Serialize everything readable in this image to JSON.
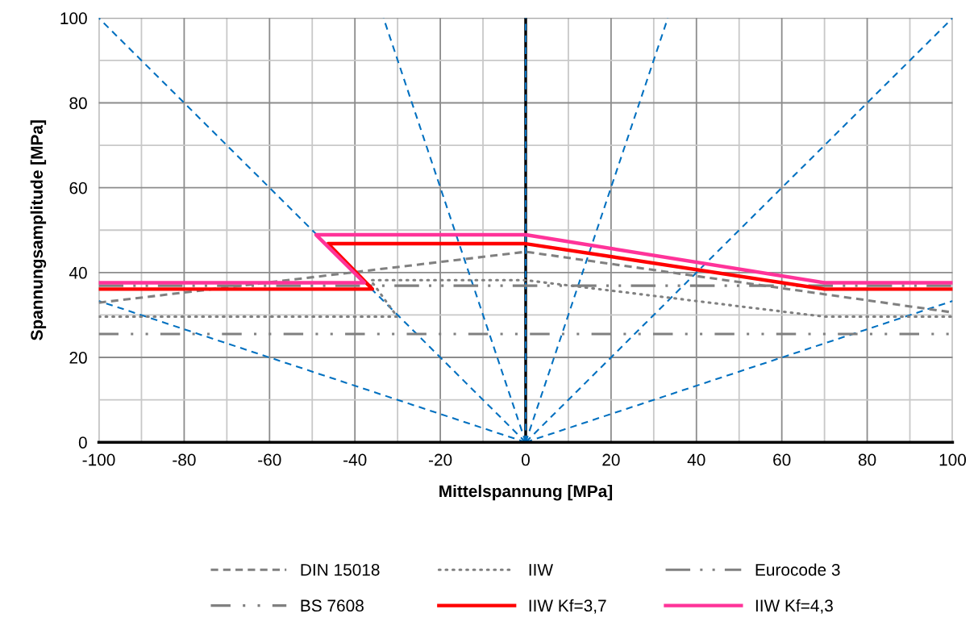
{
  "chart_data": {
    "type": "line",
    "xlabel": "Mittelspannung [MPa]",
    "ylabel": "Spannungsamplitude [MPa]",
    "xlim": [
      -100,
      100
    ],
    "ylim": [
      0,
      100
    ],
    "xticks": [
      -100,
      -80,
      -60,
      -40,
      -20,
      0,
      20,
      40,
      60,
      80,
      100
    ],
    "yticks": [
      0,
      20,
      40,
      60,
      80,
      100
    ],
    "grid": true,
    "legend": "bottom",
    "ref_lines": [
      {
        "axis": "x",
        "value": 0,
        "color": "#000000"
      }
    ],
    "series": [
      {
        "color": "#0070c0",
        "line_style": "dashed",
        "x": [
          0,
          -100
        ],
        "values": [
          0,
          100
        ]
      },
      {
        "color": "#0070c0",
        "line_style": "dashed",
        "x": [
          0,
          -100
        ],
        "values": [
          0,
          33.3
        ]
      },
      {
        "color": "#0070c0",
        "line_style": "dashed",
        "x": [
          0,
          -33.3
        ],
        "values": [
          0,
          100
        ]
      },
      {
        "color": "#0070c0",
        "line_style": "dashed",
        "x": [
          0,
          0
        ],
        "values": [
          0,
          100
        ]
      },
      {
        "color": "#0070c0",
        "line_style": "dashed",
        "x": [
          0,
          33.3
        ],
        "values": [
          0,
          100
        ]
      },
      {
        "color": "#0070c0",
        "line_style": "dashed",
        "x": [
          0,
          100
        ],
        "values": [
          0,
          100
        ]
      },
      {
        "color": "#0070c0",
        "line_style": "dashed",
        "x": [
          0,
          100
        ],
        "values": [
          0,
          33.3
        ]
      },
      {
        "name": "DIN 15018",
        "color": "#808080",
        "line_style": "dashed",
        "x": [
          -100,
          0,
          100
        ],
        "values": [
          32.9,
          44.9,
          30.6
        ]
      },
      {
        "name": "IIW",
        "color": "#808080",
        "line_style": "dotted",
        "x": [
          -100,
          -30.1,
          -36.3,
          0,
          70,
          100
        ],
        "values": [
          29.6,
          29.6,
          38.2,
          38.2,
          29.6,
          29.6
        ]
      },
      {
        "name": "Eurocode 3",
        "color": "#808080",
        "line_style": "dashdot",
        "x": [
          -100,
          100
        ],
        "values": [
          36.9,
          36.9
        ]
      },
      {
        "name": "BS 7608",
        "color": "#808080",
        "line_style": "dashdotdot",
        "x": [
          -100,
          100
        ],
        "values": [
          25.5,
          25.5
        ]
      },
      {
        "name": "IIW Kf=3,7",
        "color": "#ff0000",
        "line_style": "solid",
        "x": [
          -100,
          -35.9,
          -46.3,
          0,
          70,
          100
        ],
        "values": [
          36.1,
          36.1,
          46.8,
          46.8,
          36.1,
          36.1
        ]
      },
      {
        "name": "IIW Kf=4,3",
        "color": "#ff3399",
        "line_style": "solid",
        "x": [
          -100,
          -37.8,
          -49.1,
          0,
          70,
          100
        ],
        "values": [
          37.6,
          37.6,
          48.9,
          48.9,
          37.6,
          37.6
        ]
      }
    ]
  }
}
